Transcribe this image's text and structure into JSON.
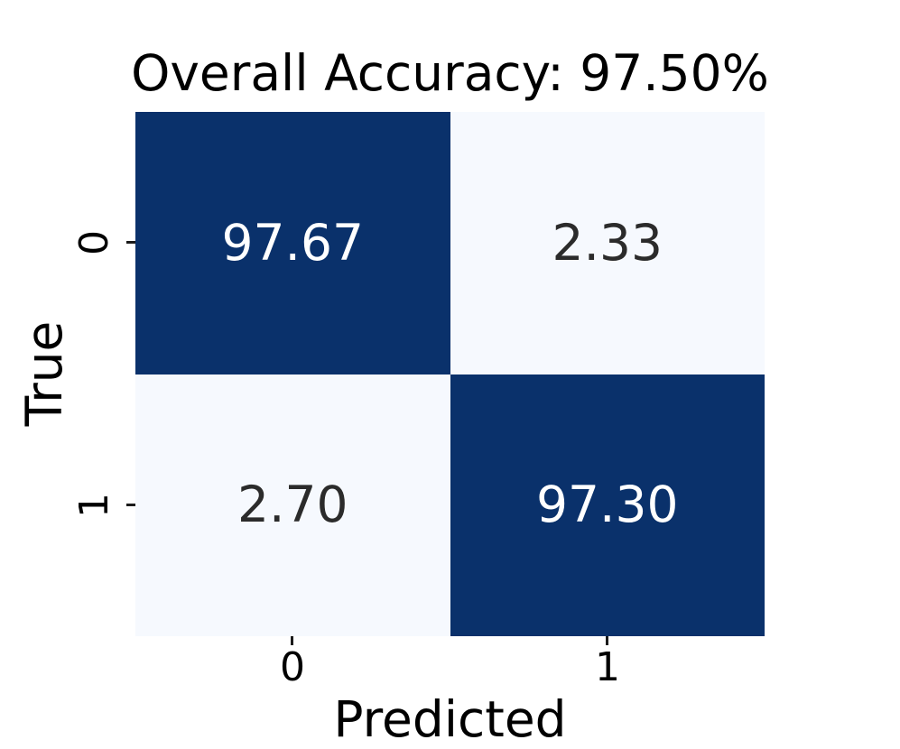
{
  "chart_data": {
    "type": "heatmap",
    "title": "Overall Accuracy: 97.50%",
    "xlabel": "Predicted",
    "ylabel": "True",
    "x_tick_labels": [
      "0",
      "1"
    ],
    "y_tick_labels": [
      "0",
      "1"
    ],
    "matrix": [
      [
        97.67,
        2.33
      ],
      [
        2.7,
        97.3
      ]
    ],
    "colormap": "Blues",
    "legend": "none",
    "grid": false,
    "colors": {
      "background": "#ffffff",
      "dark_cell": "#0a316b",
      "light_cell": "#f6f9fe",
      "text_on_dark": "#ffffff",
      "text_on_light": "#2b2b2b",
      "axis_text": "#000000",
      "tick_mark": "#1a1a1a"
    },
    "cells": [
      {
        "row": 0,
        "col": 0,
        "value": "97.67",
        "bg": "#0a316b",
        "fg": "#ffffff"
      },
      {
        "row": 0,
        "col": 1,
        "value": "2.33",
        "bg": "#f6f9fe",
        "fg": "#2b2b2b"
      },
      {
        "row": 1,
        "col": 0,
        "value": "2.70",
        "bg": "#f6f9fe",
        "fg": "#2b2b2b"
      },
      {
        "row": 1,
        "col": 1,
        "value": "97.30",
        "bg": "#0a316b",
        "fg": "#ffffff"
      }
    ]
  }
}
